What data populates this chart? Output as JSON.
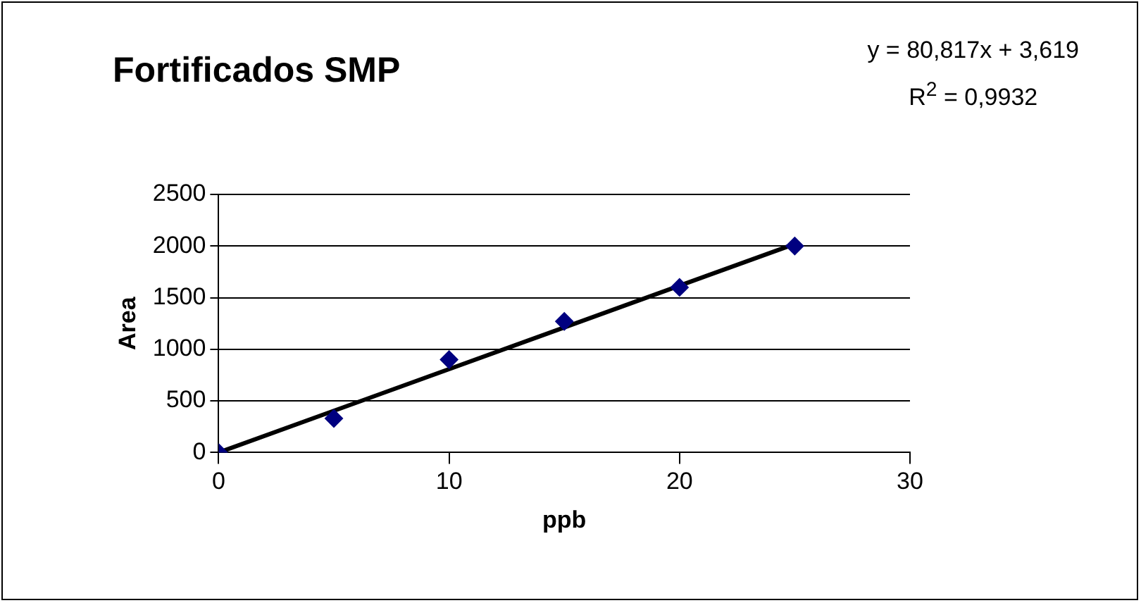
{
  "chart_data": {
    "type": "scatter",
    "title": "Fortificados SMP",
    "xlabel": "ppb",
    "ylabel": "Area",
    "x": [
      0,
      5,
      10,
      15,
      20,
      25
    ],
    "series": [
      {
        "color": "#000080",
        "marker": "diamond",
        "values": [
          0,
          330,
          900,
          1270,
          1600,
          2000
        ]
      },
      {
        "type": "line",
        "color": "#000000",
        "marker": "none",
        "x": [
          0,
          25
        ],
        "values": [
          0,
          2020
        ]
      }
    ],
    "xlim": [
      0,
      30
    ],
    "xticks": [
      0,
      10,
      20,
      30
    ],
    "ylim": [
      0,
      2500
    ],
    "yticks": [
      0,
      500,
      1000,
      1500,
      2000,
      2500
    ],
    "grid": "y",
    "legend": false,
    "annotations": [
      "y = 80,817x + 3,619",
      "R$^{2}$ = 0,9932"
    ]
  }
}
